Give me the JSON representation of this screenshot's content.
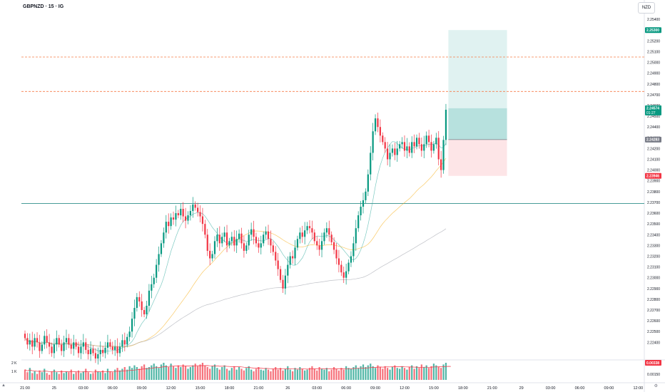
{
  "header": {
    "symbol_title": "GBPNZD · 15 · IG",
    "currency_label": "NZD"
  },
  "chart_data": {
    "type": "candlestick",
    "title": "GBPNZD · 15 · IG",
    "y_axis": {
      "range": [
        2.2225,
        2.255
      ],
      "ticks": [
        "2.25400",
        "2.25300",
        "2.25200",
        "2.25100",
        "2.25000",
        "2.24900",
        "2.24800",
        "2.24700",
        "2.24600",
        "2.24500",
        "2.24400",
        "2.24300",
        "2.24200",
        "2.24100",
        "2.24000",
        "2.23900",
        "2.23800",
        "2.23700",
        "2.23600",
        "2.23500",
        "2.23400",
        "2.23300",
        "2.23200",
        "2.23100",
        "2.23000",
        "2.22900",
        "2.22800",
        "2.22700",
        "2.22600",
        "2.22500",
        "2.22400"
      ]
    },
    "x_axis": {
      "ticks": [
        {
          "i": 0,
          "label": "21:00"
        },
        {
          "i": 12,
          "label": "25"
        },
        {
          "i": 24,
          "label": "03:00"
        },
        {
          "i": 36,
          "label": "06:00"
        },
        {
          "i": 48,
          "label": "09:00"
        },
        {
          "i": 60,
          "label": "12:00"
        },
        {
          "i": 72,
          "label": "15:00"
        },
        {
          "i": 84,
          "label": "18:00"
        },
        {
          "i": 96,
          "label": "21:00"
        },
        {
          "i": 108,
          "label": "26"
        },
        {
          "i": 120,
          "label": "03:00"
        },
        {
          "i": 132,
          "label": "06:00"
        },
        {
          "i": 144,
          "label": "09:00"
        },
        {
          "i": 156,
          "label": "12:00"
        },
        {
          "i": 168,
          "label": "15:00"
        },
        {
          "i": 180,
          "label": "18:00"
        },
        {
          "i": 192,
          "label": "21:00"
        },
        {
          "i": 204,
          "label": "29"
        },
        {
          "i": 216,
          "label": "03:00"
        },
        {
          "i": 228,
          "label": "06:00"
        },
        {
          "i": 240,
          "label": "09:00"
        },
        {
          "i": 252,
          "label": "12:00"
        }
      ]
    },
    "closes": [
      2.2244,
      2.2238,
      2.2242,
      2.2236,
      2.2244,
      2.224,
      2.2232,
      2.2238,
      2.2246,
      2.224,
      2.2236,
      2.223,
      2.2238,
      2.2244,
      2.2238,
      2.2232,
      2.224,
      2.2244,
      2.2238,
      2.2234,
      2.224,
      2.2236,
      2.223,
      2.2236,
      2.224,
      2.2233,
      2.2229,
      2.2234,
      2.223,
      2.2225,
      2.2229,
      2.2233,
      2.223,
      2.2235,
      2.224,
      2.2236,
      2.2233,
      2.2236,
      2.223,
      2.2236,
      2.2242,
      2.2238,
      2.2245,
      2.225,
      2.2262,
      2.2272,
      2.2282,
      2.2278,
      2.227,
      2.2266,
      2.2274,
      2.2288,
      2.2294,
      2.23,
      2.2312,
      2.2322,
      2.2332,
      2.2342,
      2.2352,
      2.2348,
      2.2356,
      2.2354,
      2.236,
      2.2358,
      2.2364,
      2.2357,
      2.2353,
      2.2358,
      2.2362,
      2.2368,
      2.2365,
      2.2361,
      2.2357,
      2.235,
      2.234,
      2.2325,
      2.2318,
      2.2322,
      2.2334,
      2.234,
      2.2332,
      2.2338,
      2.2342,
      2.233,
      2.2334,
      2.2338,
      2.233,
      2.2336,
      2.2341,
      2.2332,
      2.2325,
      2.233,
      2.234,
      2.2345,
      2.2338,
      2.2332,
      2.2328,
      2.2332,
      2.234,
      2.2343,
      2.2336,
      2.233,
      2.2324,
      2.2316,
      2.2308,
      2.2298,
      2.229,
      2.2302,
      2.2312,
      2.232,
      2.2318,
      2.2328,
      2.2336,
      2.2342,
      2.2338,
      2.2344,
      2.2348,
      2.2346,
      2.2342,
      2.2334,
      2.233,
      2.2326,
      2.2334,
      2.2342,
      2.2346,
      2.234,
      2.2333,
      2.2326,
      2.2318,
      2.2312,
      2.2305,
      2.23,
      2.2306,
      2.2314,
      2.232,
      2.2332,
      2.2346,
      2.2358,
      2.2366,
      2.2372,
      2.238,
      2.2396,
      2.2416,
      2.2436,
      2.2448,
      2.244,
      2.2432,
      2.2426,
      2.242,
      2.241,
      2.2416,
      2.242,
      2.2414,
      2.242,
      2.2424,
      2.2426,
      2.2418,
      2.2422,
      2.2416,
      2.2426,
      2.2422,
      2.243,
      2.2424,
      2.2418,
      2.2424,
      2.2432,
      2.2426,
      2.2418,
      2.2424,
      2.243,
      2.241,
      2.24,
      2.2428,
      2.2456
    ],
    "volume_axis": {
      "ticks": [
        "2 K",
        "1 K"
      ]
    },
    "moving_averages": [
      {
        "color": "#26a69a"
      },
      {
        "color": "#f7a600"
      },
      {
        "color": "#9598a1"
      }
    ],
    "horizontal_lines": [
      {
        "price": 2.2505,
        "color": "#f57c4a",
        "style": "dashed"
      },
      {
        "price": 2.2473,
        "color": "#f57c4a",
        "style": "dashed"
      },
      {
        "price": 2.2369,
        "color": "#2e8e8a",
        "style": "solid"
      }
    ],
    "long_position": {
      "entry": 2.24283,
      "target": 2.253,
      "stop": 2.23946,
      "current": 2.24574,
      "start_index": 174,
      "end_index": 194
    },
    "price_labels": {
      "target": "2.25300",
      "current": "2.24574",
      "countdown": "01:27",
      "entry": "2.24283",
      "stop": "2.23946",
      "indicator": "0.00338",
      "indicator_sub": "0.00150"
    },
    "volume": [
      12,
      9,
      14,
      8,
      10,
      7,
      11,
      9,
      13,
      8,
      6,
      10,
      12,
      9,
      7,
      11,
      8,
      10,
      9,
      12,
      7,
      9,
      11,
      8,
      10,
      13,
      9,
      7,
      8,
      12,
      10,
      9,
      11,
      8,
      13,
      10,
      9,
      12,
      14,
      11,
      13,
      15,
      12,
      16,
      14,
      17,
      15,
      13,
      16,
      18,
      14,
      15,
      17,
      19,
      16,
      14,
      18,
      20,
      17,
      15,
      19,
      16,
      14,
      17,
      15,
      18,
      16,
      13,
      15,
      17,
      19,
      16,
      18,
      20,
      17,
      15,
      13,
      16,
      18,
      14,
      12,
      15,
      17,
      13,
      11,
      14,
      16,
      12,
      15,
      13,
      11,
      14,
      16,
      12,
      10,
      13,
      15,
      12,
      11,
      14,
      12,
      10,
      13,
      15,
      12,
      14,
      11,
      13,
      16,
      12,
      10,
      14,
      12,
      15,
      13,
      11,
      12,
      14,
      16,
      13,
      11,
      15,
      13,
      12,
      14,
      10,
      12,
      15,
      13,
      11,
      14,
      12,
      16,
      14,
      13,
      15,
      17,
      14,
      16,
      18,
      15,
      17,
      19,
      16,
      14,
      17,
      15,
      13,
      16,
      14,
      12,
      15,
      17,
      14,
      13,
      16,
      14,
      12,
      15,
      17,
      13,
      16,
      14,
      18,
      15,
      17,
      14,
      16,
      19,
      17,
      15,
      14,
      18,
      20,
      17,
      14
    ]
  },
  "icons": {
    "bottom_left": "tradingview-logo-icon",
    "bottom_right": "settings-icon"
  }
}
